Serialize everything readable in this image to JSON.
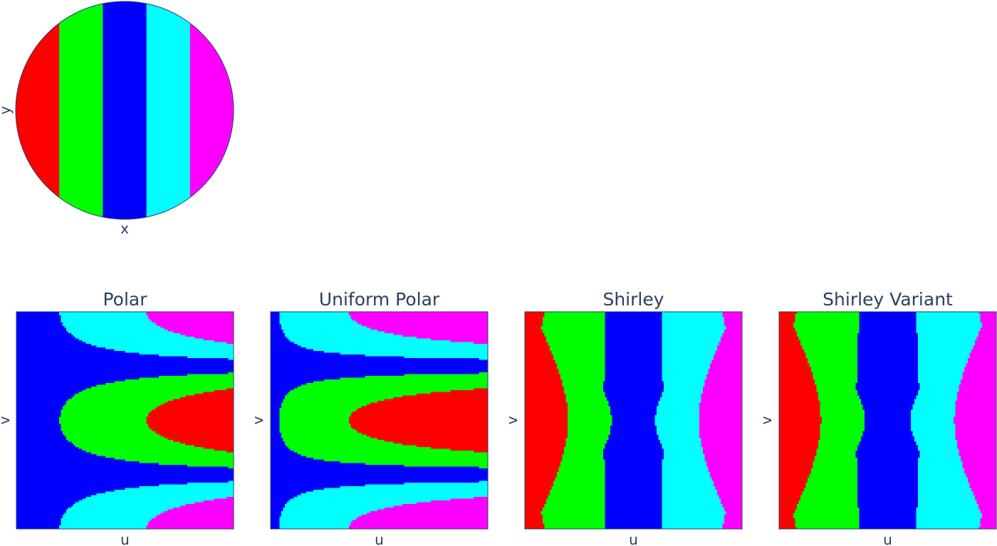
{
  "colors": {
    "red": "#ff0000",
    "green": "#00ff00",
    "blue": "#0000ff",
    "cyan": "#00ffff",
    "magenta": "#ff00ff",
    "text": "#2a3f5f",
    "border": "#2a3f5f"
  },
  "chart_data": [
    {
      "type": "heatmap",
      "title": "",
      "xlabel": "x",
      "ylabel": "y",
      "domain": "unit disk",
      "xlim": [
        -1,
        1
      ],
      "ylim": [
        -1,
        1
      ],
      "color_order": [
        "red",
        "green",
        "blue",
        "cyan",
        "magenta"
      ],
      "bands": [
        {
          "color": "red",
          "x_from": -1.0,
          "x_to": -0.6
        },
        {
          "color": "green",
          "x_from": -0.6,
          "x_to": -0.2
        },
        {
          "color": "blue",
          "x_from": -0.2,
          "x_to": 0.2
        },
        {
          "color": "cyan",
          "x_from": 0.2,
          "x_to": 0.6
        },
        {
          "color": "magenta",
          "x_from": 0.6,
          "x_to": 1.0
        }
      ]
    },
    {
      "type": "heatmap",
      "title": "Polar",
      "xlabel": "u",
      "ylabel": "v",
      "mapping": "polar",
      "xlim": [
        0,
        1
      ],
      "ylim": [
        0,
        1
      ],
      "color_order": [
        "red",
        "green",
        "blue",
        "cyan",
        "magenta"
      ]
    },
    {
      "type": "heatmap",
      "title": "Uniform Polar",
      "xlabel": "u",
      "ylabel": "v",
      "mapping": "uniform_polar",
      "xlim": [
        0,
        1
      ],
      "ylim": [
        0,
        1
      ],
      "color_order": [
        "red",
        "green",
        "blue",
        "cyan",
        "magenta"
      ]
    },
    {
      "type": "heatmap",
      "title": "Shirley",
      "xlabel": "u",
      "ylabel": "v",
      "mapping": "shirley",
      "xlim": [
        0,
        1
      ],
      "ylim": [
        0,
        1
      ],
      "color_order": [
        "red",
        "green",
        "blue",
        "cyan",
        "magenta"
      ]
    },
    {
      "type": "heatmap",
      "title": "Shirley Variant",
      "xlabel": "u",
      "ylabel": "v",
      "mapping": "shirley_variant",
      "xlim": [
        0,
        1
      ],
      "ylim": [
        0,
        1
      ],
      "color_order": [
        "red",
        "green",
        "blue",
        "cyan",
        "magenta"
      ]
    }
  ]
}
